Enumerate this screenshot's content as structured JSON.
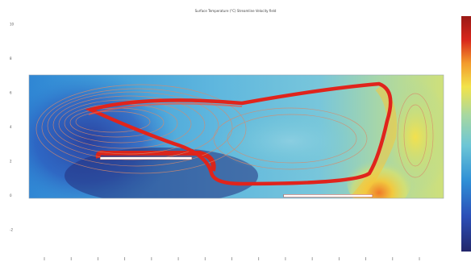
{
  "chart_data": {
    "type": "heatmap",
    "title": "Surface Temperature (°C) Streamline Velocity field",
    "colorbar": {
      "max_label": "",
      "min_label": "",
      "colormap": [
        "#23276b",
        "#2b4fb8",
        "#2f8fd6",
        "#6cc6d6",
        "#a8d8a0",
        "#f2e34a",
        "#f39b2c",
        "#d8261c",
        "#9a1a16"
      ]
    },
    "y_ticks": [
      "10",
      "8",
      "6",
      "4",
      "2",
      "0",
      "-2"
    ],
    "x_tick_count": 15,
    "domain": {
      "x_range": [
        0,
        14
      ],
      "y_range": [
        0,
        4
      ]
    },
    "heaters": [
      {
        "name": "upper-heater",
        "x": [
          2.4,
          5.5
        ],
        "y": 1.3
      },
      {
        "name": "lower-heater",
        "x": [
          8.6,
          11.6
        ],
        "y": 0.08
      }
    ],
    "grid": false
  },
  "colors": {
    "background": "#ffffff",
    "hot_stream": "#e0241c",
    "streamline": "#d98a6a",
    "heater": "#ffffff"
  }
}
